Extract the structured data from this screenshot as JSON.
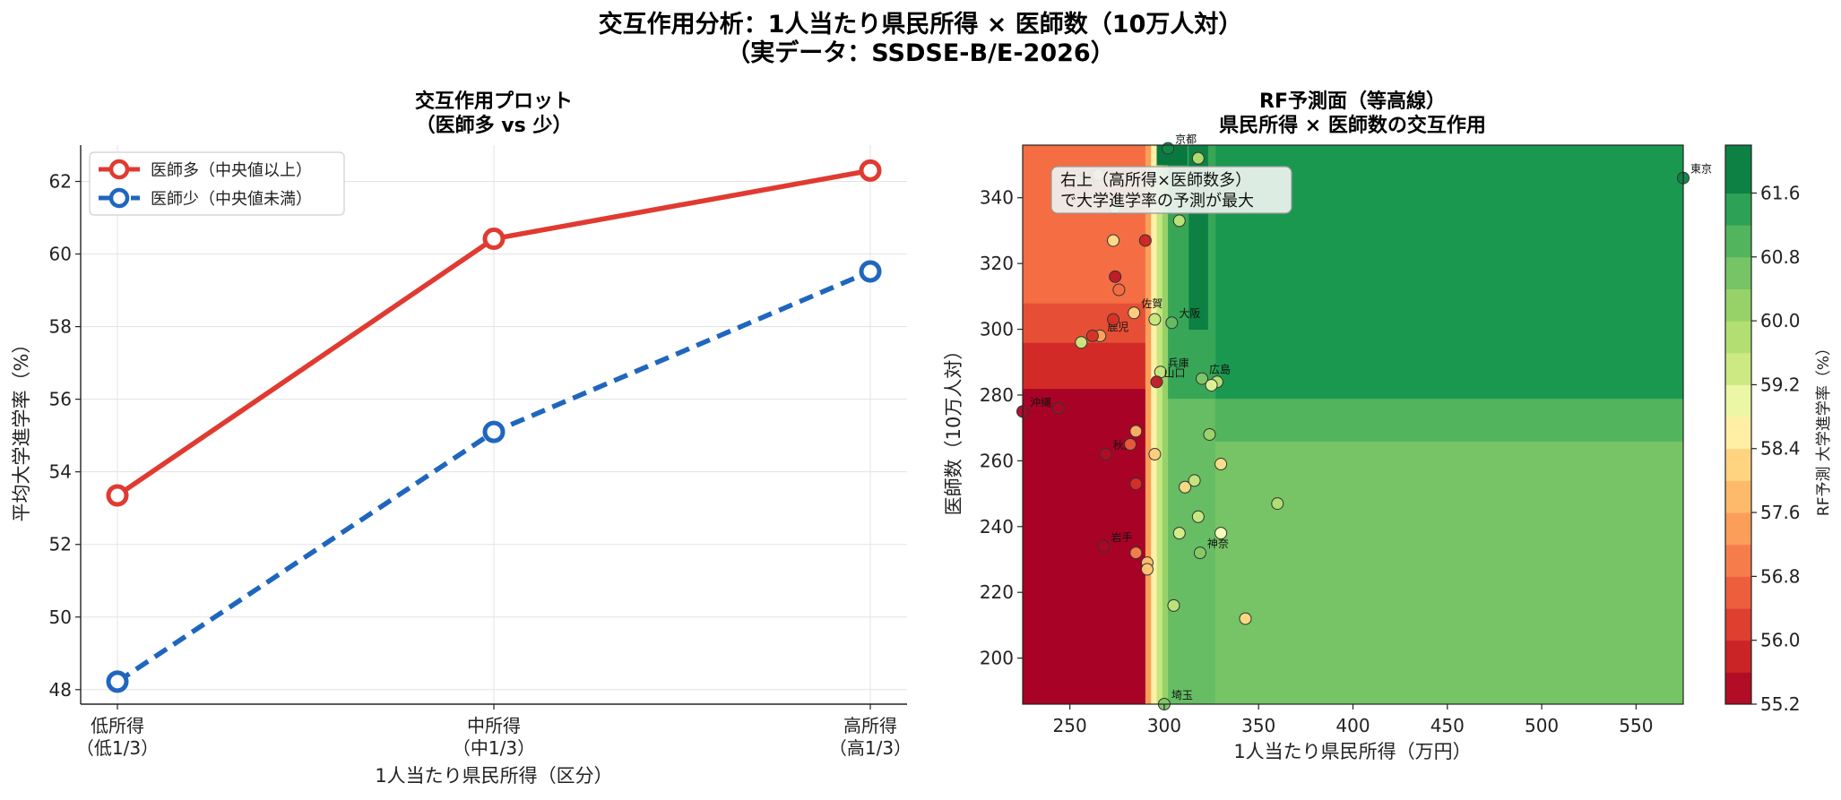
{
  "figure": {
    "title_line1": "交互作用分析：1人当たり県民所得 × 医師数（10万人対）",
    "title_line2": "（実データ：SSDSE-B/E-2026）"
  },
  "colors": {
    "high": "#e03a31",
    "low": "#1f66be"
  },
  "chart_data": [
    {
      "type": "line",
      "title_line1": "交互作用プロット",
      "title_line2": "（医師多 vs 少）",
      "xlabel": "1人当たり県民所得（区分）",
      "ylabel": "平均大学進学率（%）",
      "categories": [
        {
          "line1": "低所得",
          "line2": "（低1/3）"
        },
        {
          "line1": "中所得",
          "line2": "（中1/3）"
        },
        {
          "line1": "高所得",
          "line2": "（高1/3）"
        }
      ],
      "ylim": [
        47.6,
        63.0
      ],
      "yticks": [
        48,
        50,
        52,
        54,
        56,
        58,
        60,
        62
      ],
      "grid": true,
      "legend_position": "top-left",
      "series": [
        {
          "name": "医師多（中央値以上）",
          "values": [
            53.35,
            60.42,
            62.3
          ],
          "style": "solid"
        },
        {
          "name": "医師少（中央値未満）",
          "values": [
            48.22,
            55.1,
            59.52
          ],
          "style": "dashed"
        }
      ]
    },
    {
      "type": "heatmap",
      "title_line1": "RF予測面（等高線）",
      "title_line2": "県民所得 × 医師数の交互作用",
      "xlabel": "1人当たり県民所得（万円）",
      "ylabel": "医師数（10万人対）",
      "xlim": [
        225,
        575
      ],
      "ylim": [
        186,
        356
      ],
      "xticks": [
        250,
        300,
        350,
        400,
        450,
        500,
        550
      ],
      "yticks": [
        200,
        220,
        240,
        260,
        280,
        300,
        320,
        340
      ],
      "colorbar_label": "RF予測 大学進学率（%）",
      "colorbar_ticks": [
        "55.2",
        "56.0",
        "56.8",
        "57.6",
        "58.4",
        "59.2",
        "60.0",
        "60.8",
        "61.6"
      ],
      "colorbar_range": [
        55.2,
        62.2
      ],
      "annotation_line1": "右上（高所得×医師数多）",
      "annotation_line2": "で大学進学率の予測が最大",
      "regions": [
        {
          "x0": 225,
          "x1": 290,
          "y0": 186,
          "y1": 282,
          "value": 55.25
        },
        {
          "x0": 225,
          "x1": 290,
          "y0": 282,
          "y1": 296,
          "value": 55.9
        },
        {
          "x0": 225,
          "x1": 290,
          "y0": 296,
          "y1": 308,
          "value": 56.4
        },
        {
          "x0": 225,
          "x1": 290,
          "y0": 308,
          "y1": 356,
          "value": 56.8
        },
        {
          "x0": 290,
          "x1": 293,
          "y0": 186,
          "y1": 356,
          "value": 57.4
        },
        {
          "x0": 293,
          "x1": 296,
          "y0": 186,
          "y1": 356,
          "value": 58.6
        },
        {
          "x0": 296,
          "x1": 299,
          "y0": 186,
          "y1": 356,
          "value": 59.5
        },
        {
          "x0": 299,
          "x1": 302,
          "y0": 186,
          "y1": 356,
          "value": 60.2
        },
        {
          "x0": 302,
          "x1": 327,
          "y0": 186,
          "y1": 356,
          "value": 60.8
        },
        {
          "x0": 327,
          "x1": 575,
          "y0": 186,
          "y1": 266,
          "value": 60.6
        },
        {
          "x0": 327,
          "x1": 575,
          "y0": 266,
          "y1": 279,
          "value": 61.0
        },
        {
          "x0": 327,
          "x1": 575,
          "y0": 279,
          "y1": 356,
          "value": 61.6
        },
        {
          "x0": 302,
          "x1": 327,
          "y0": 279,
          "y1": 356,
          "value": 61.3
        },
        {
          "x0": 313,
          "x1": 323,
          "y0": 300,
          "y1": 356,
          "value": 61.9
        },
        {
          "x0": 296,
          "x1": 312,
          "y0": 350,
          "y1": 356,
          "value": 62.0
        }
      ],
      "points": [
        {
          "x": 575,
          "y": 346,
          "v": 61.9,
          "label": "東京"
        },
        {
          "x": 302,
          "y": 355,
          "v": 61.8,
          "label": "京都"
        },
        {
          "x": 304,
          "y": 302,
          "v": 60.8,
          "label": "大阪"
        },
        {
          "x": 298,
          "y": 287,
          "v": 59.5,
          "label": "兵庫"
        },
        {
          "x": 296,
          "y": 284,
          "v": 55.6,
          "label": "山口"
        },
        {
          "x": 320,
          "y": 285,
          "v": 60.5,
          "label": "広島"
        },
        {
          "x": 319,
          "y": 232,
          "v": 60.4,
          "label": "神奈"
        },
        {
          "x": 300,
          "y": 186,
          "v": 60.5,
          "label": "埼玉"
        },
        {
          "x": 268,
          "y": 234,
          "v": 55.3,
          "label": "岩手"
        },
        {
          "x": 269,
          "y": 262,
          "v": 55.4,
          "label": "秋田"
        },
        {
          "x": 225,
          "y": 275,
          "v": 55.3,
          "label": "沖縄"
        },
        {
          "x": 266,
          "y": 298,
          "v": 57.5,
          "label": "鹿児"
        },
        {
          "x": 284,
          "y": 305,
          "v": 58.2,
          "label": "佐賀"
        },
        {
          "x": 262,
          "y": 298,
          "v": 56.0
        },
        {
          "x": 256,
          "y": 296,
          "v": 59.4
        },
        {
          "x": 244,
          "y": 276,
          "v": 55.3
        },
        {
          "x": 276,
          "y": 312,
          "v": 56.8
        },
        {
          "x": 274,
          "y": 316,
          "v": 55.6
        },
        {
          "x": 273,
          "y": 327,
          "v": 58.4
        },
        {
          "x": 290,
          "y": 327,
          "v": 55.8
        },
        {
          "x": 308,
          "y": 333,
          "v": 59.6
        },
        {
          "x": 318,
          "y": 352,
          "v": 59.8
        },
        {
          "x": 274,
          "y": 337,
          "v": 59.2
        },
        {
          "x": 265,
          "y": 347,
          "v": 58.2
        },
        {
          "x": 260,
          "y": 345,
          "v": 56.5
        },
        {
          "x": 255,
          "y": 345,
          "v": 57.2
        },
        {
          "x": 273,
          "y": 303,
          "v": 56.0
        },
        {
          "x": 295,
          "y": 303,
          "v": 59.5
        },
        {
          "x": 328,
          "y": 284,
          "v": 59.7
        },
        {
          "x": 325,
          "y": 283,
          "v": 59.1
        },
        {
          "x": 285,
          "y": 269,
          "v": 57.7
        },
        {
          "x": 282,
          "y": 265,
          "v": 56.6
        },
        {
          "x": 295,
          "y": 262,
          "v": 58.1
        },
        {
          "x": 285,
          "y": 253,
          "v": 56.0
        },
        {
          "x": 311,
          "y": 252,
          "v": 58.3
        },
        {
          "x": 316,
          "y": 254,
          "v": 59.5
        },
        {
          "x": 324,
          "y": 268,
          "v": 60.1
        },
        {
          "x": 330,
          "y": 259,
          "v": 58.4
        },
        {
          "x": 360,
          "y": 247,
          "v": 59.8
        },
        {
          "x": 318,
          "y": 243,
          "v": 59.4
        },
        {
          "x": 308,
          "y": 238,
          "v": 59.2
        },
        {
          "x": 330,
          "y": 238,
          "v": 58.8
        },
        {
          "x": 285,
          "y": 232,
          "v": 57.1
        },
        {
          "x": 291,
          "y": 229,
          "v": 57.9
        },
        {
          "x": 291,
          "y": 227,
          "v": 58.0
        },
        {
          "x": 305,
          "y": 216,
          "v": 59.6
        },
        {
          "x": 343,
          "y": 212,
          "v": 58.3
        }
      ]
    }
  ]
}
